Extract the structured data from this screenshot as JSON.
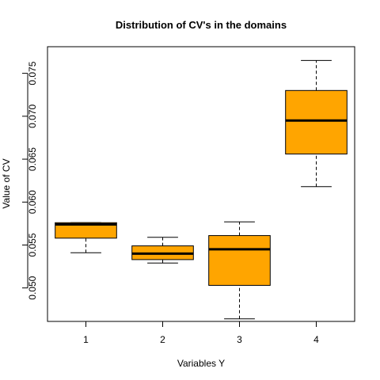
{
  "chart_data": {
    "type": "box",
    "title": "Distribution of CV's in the domains",
    "xlabel": "Variables Y",
    "ylabel": "Value of CV",
    "categories": [
      "1",
      "2",
      "3",
      "4"
    ],
    "y_ticks": [
      "0.050",
      "0.055",
      "0.060",
      "0.065",
      "0.070",
      "0.075"
    ],
    "y_tick_values": [
      0.05,
      0.055,
      0.06,
      0.065,
      0.07,
      0.075
    ],
    "ylim": [
      0.0461,
      0.0781
    ],
    "xlim": [
      0.5,
      4.5
    ],
    "grid": false,
    "box_fill": "#FFA500",
    "line_color": "#000000",
    "boxes": [
      {
        "category": "1",
        "min": 0.0541,
        "q1": 0.0558,
        "median": 0.0574,
        "q3": 0.0576,
        "max": 0.0576
      },
      {
        "category": "2",
        "min": 0.0529,
        "q1": 0.0533,
        "median": 0.054,
        "q3": 0.0549,
        "max": 0.0559
      },
      {
        "category": "3",
        "min": 0.0464,
        "q1": 0.0503,
        "median": 0.0545,
        "q3": 0.0561,
        "max": 0.0577
      },
      {
        "category": "4",
        "min": 0.0618,
        "q1": 0.0656,
        "median": 0.0695,
        "q3": 0.073,
        "max": 0.0765
      }
    ]
  }
}
